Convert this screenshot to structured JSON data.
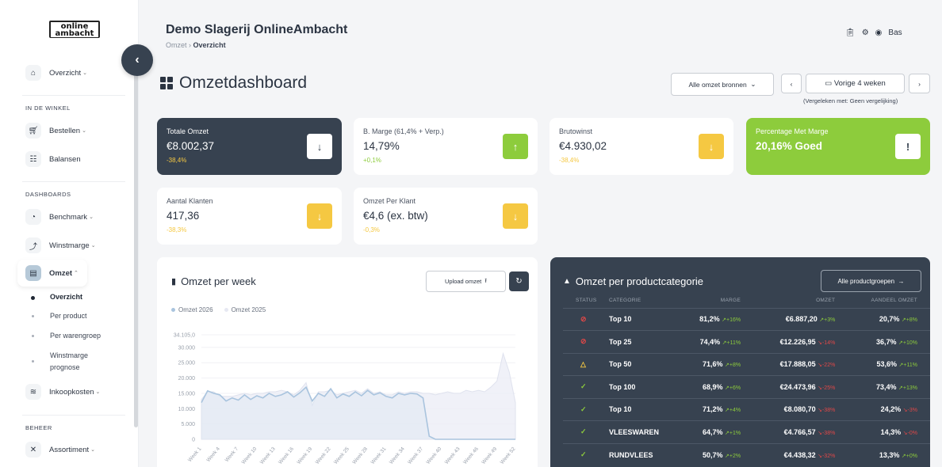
{
  "logo": {
    "line1": "online",
    "line2": "ambacht"
  },
  "sidebar": {
    "overview": "Overzicht",
    "section_store": "IN DE WINKEL",
    "orders": "Bestellen",
    "balances": "Balansen",
    "section_dash": "DASHBOARDS",
    "benchmark": "Benchmark",
    "margin": "Winstmarge",
    "revenue": "Omzet",
    "sub": [
      "Overzicht",
      "Per product",
      "Per warengroep",
      "Winstmarge",
      "prognose"
    ],
    "purchase": "Inkoopkosten",
    "section_manage": "BEHEER",
    "assortment": "Assortiment"
  },
  "header": {
    "title": "Demo Slagerij OnlineAmbacht",
    "crumb1": "Omzet",
    "crumb_sep": "›",
    "crumb2": "Overzicht",
    "user": "Bas"
  },
  "dashboard": {
    "title": "Omzetdashboard",
    "source_filter": "Alle omzet bronnen",
    "period": "Vorige 4 weken",
    "compare": "(Vergeleken met: Geen vergelijking)"
  },
  "kpis": [
    {
      "label": "Totale Omzet",
      "value": "€8.002,37",
      "change": "-38,4%",
      "arrow": "↓"
    },
    {
      "label": "B. Marge (61,4% + Verp.)",
      "value": "14,79%",
      "change": "+0,1%",
      "arrow": "↑"
    },
    {
      "label": "Brutowinst",
      "value": "€4.930,02",
      "change": "-38,4%",
      "arrow": "↓"
    },
    {
      "label": "Percentage Met Marge",
      "value": "20,16% Goed",
      "arrow": "!"
    },
    {
      "label": "Aantal Klanten",
      "value": "417,36",
      "change": "-38,3%",
      "arrow": "↓"
    },
    {
      "label": "Omzet Per Klant",
      "value": "€4,6 (ex. btw)",
      "change": "-0,3%",
      "arrow": "↓"
    }
  ],
  "colors": {
    "dark": "#374250",
    "green": "#8dcc3c",
    "yellow": "#f5c842",
    "red": "#e04848",
    "line2026": "#a9c4de",
    "line2025": "#e6e8f2"
  },
  "chart_panel": {
    "title": "Omzet per week",
    "upload": "Upload omzet"
  },
  "chart_data": {
    "type": "line",
    "ylim": [
      0,
      34105
    ],
    "y_ticks": [
      "34.105,0",
      "30.000",
      "25.000",
      "20.000",
      "15.000",
      "10.000",
      "5.000",
      "0"
    ],
    "categories": [
      "Week 1",
      "Week 2",
      "Week 3",
      "Week 4",
      "Week 5",
      "Week 6",
      "Week 7",
      "Week 8",
      "Week 9",
      "Week 10",
      "Week 11",
      "Week 12",
      "Week 13",
      "Week 14",
      "Week 15",
      "Week 16",
      "Week 17",
      "Week 18",
      "Week 19",
      "Week 20",
      "Week 21",
      "Week 22",
      "Week 23",
      "Week 24",
      "Week 25",
      "Week 26",
      "Week 27",
      "Week 28",
      "Week 29",
      "Week 30",
      "Week 31",
      "Week 32",
      "Week 33",
      "Week 34",
      "Week 35",
      "Week 36",
      "Week 37",
      "Week 38",
      "Week 39",
      "Week 40",
      "Week 41",
      "Week 42",
      "Week 43",
      "Week 44",
      "Week 45",
      "Week 46",
      "Week 47",
      "Week 48",
      "Week 49",
      "Week 50",
      "Week 51",
      "Week 52"
    ],
    "x_tick_labels": [
      "Week 1",
      "Week 4",
      "Week 7",
      "Week 10",
      "Week 13",
      "Week 16",
      "Week 19",
      "Week 22",
      "Week 25",
      "Week 28",
      "Week 31",
      "Week 34",
      "Week 37",
      "Week 40",
      "Week 43",
      "Week 46",
      "Week 49",
      "Week 52"
    ],
    "series": [
      {
        "name": "Omzet 2026",
        "values": [
          12000,
          15800,
          15000,
          14500,
          12500,
          13500,
          12800,
          14500,
          13000,
          14200,
          13500,
          15000,
          14000,
          14500,
          15500,
          13800,
          15200,
          17000,
          12500,
          15000,
          14000,
          16500,
          13500,
          14800,
          14000,
          15500,
          14200,
          16000,
          14500,
          15200,
          14000,
          13500,
          15000,
          14500,
          15000,
          14800,
          13500,
          1000,
          0,
          0,
          0,
          0,
          0,
          0,
          0,
          0,
          0,
          0,
          0,
          0,
          0,
          0
        ]
      },
      {
        "name": "Omzet 2025",
        "values": [
          13000,
          15500,
          15500,
          14000,
          14000,
          14000,
          14500,
          15000,
          14500,
          15000,
          15000,
          15500,
          15500,
          16000,
          15500,
          14500,
          16000,
          18500,
          11000,
          15500,
          15500,
          16000,
          14500,
          15000,
          15500,
          16000,
          15000,
          16500,
          15000,
          15500,
          14500,
          14500,
          15500,
          15000,
          15500,
          15500,
          15000,
          15000,
          14500,
          15000,
          15500,
          15000,
          15000,
          16000,
          15500,
          16000,
          15500,
          17000,
          19000,
          28000,
          22000,
          12000
        ]
      }
    ]
  },
  "table_panel": {
    "title": "Omzet per productcategorie",
    "all_btn": "Alle productgroepen",
    "headers": [
      "STATUS",
      "CATEGORIE",
      "MARGE",
      "OMZET",
      "AANDEEL OMZET"
    ],
    "rows": [
      {
        "status": "⊘",
        "status_color": "#e04848",
        "cat": "Top 10",
        "margin": "81,2%",
        "m_chg": "↗+16%",
        "m_up": true,
        "rev": "€6.887,20",
        "r_chg": "↗+3%",
        "r_up": true,
        "share": "20,7%",
        "s_chg": "↗+8%",
        "s_up": true
      },
      {
        "status": "⊘",
        "status_color": "#e04848",
        "cat": "Top 25",
        "margin": "74,4%",
        "m_chg": "↗+11%",
        "m_up": true,
        "rev": "€12.226,95",
        "r_chg": "↘-14%",
        "r_up": false,
        "share": "36,7%",
        "s_chg": "↗+10%",
        "s_up": true
      },
      {
        "status": "△",
        "status_color": "#f5c842",
        "cat": "Top 50",
        "margin": "71,6%",
        "m_chg": "↗+8%",
        "m_up": true,
        "rev": "€17.888,05",
        "r_chg": "↘-22%",
        "r_up": false,
        "share": "53,6%",
        "s_chg": "↗+11%",
        "s_up": true
      },
      {
        "status": "✓",
        "status_color": "#8dcc3c",
        "cat": "Top 100",
        "margin": "68,9%",
        "m_chg": "↗+6%",
        "m_up": true,
        "rev": "€24.473,96",
        "r_chg": "↘-25%",
        "r_up": false,
        "share": "73,4%",
        "s_chg": "↗+13%",
        "s_up": true
      },
      {
        "status": "✓",
        "status_color": "#8dcc3c",
        "cat": "Top 10",
        "margin": "71,2%",
        "m_chg": "↗+4%",
        "m_up": true,
        "rev": "€8.080,70",
        "r_chg": "↘-38%",
        "r_up": false,
        "share": "24,2%",
        "s_chg": "↘-3%",
        "s_up": false
      },
      {
        "status": "✓",
        "status_color": "#8dcc3c",
        "cat": "VLEESWAREN",
        "margin": "64,7%",
        "m_chg": "↗+1%",
        "m_up": true,
        "rev": "€4.766,57",
        "r_chg": "↘-38%",
        "r_up": false,
        "share": "14,3%",
        "s_chg": "↘-0%",
        "s_up": false
      },
      {
        "status": "✓",
        "status_color": "#8dcc3c",
        "cat": "RUNDVLEES",
        "margin": "50,7%",
        "m_chg": "↗+2%",
        "m_up": true,
        "rev": "€4.438,32",
        "r_chg": "↘-32%",
        "r_up": false,
        "share": "13,3%",
        "s_chg": "↗+0%",
        "s_up": true
      }
    ]
  }
}
